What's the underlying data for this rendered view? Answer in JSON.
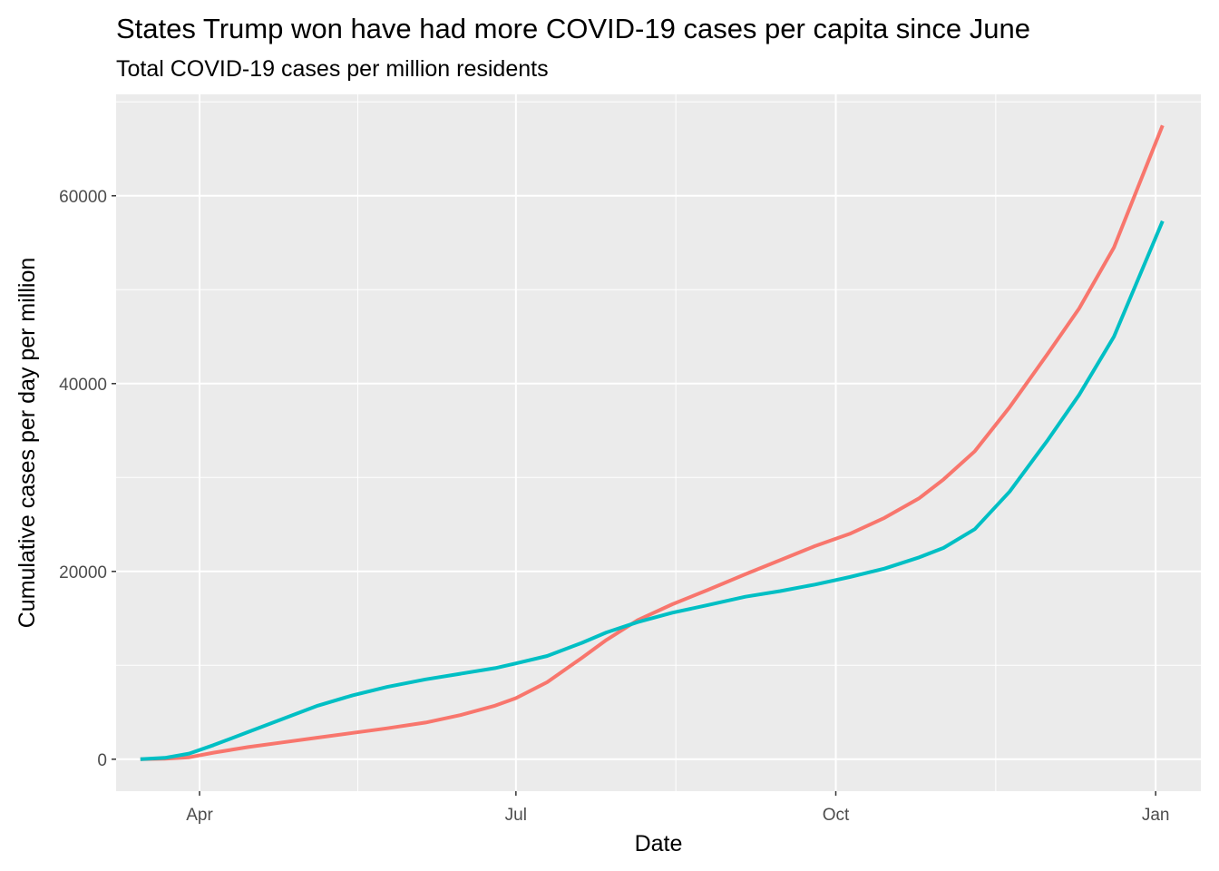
{
  "chart_data": {
    "type": "line",
    "title": "States Trump won have had more COVID-19 cases per capita since June",
    "subtitle": "Total COVID-19 cases per million residents",
    "xlabel": "Date",
    "ylabel": "Cumulative cases per day per million",
    "x_ticks": [
      {
        "date": "2020-04-01",
        "label": "Apr"
      },
      {
        "date": "2020-07-01",
        "label": "Jul"
      },
      {
        "date": "2020-10-01",
        "label": "Oct"
      },
      {
        "date": "2021-01-01",
        "label": "Jan"
      }
    ],
    "x_range": [
      "2020-03-08",
      "2021-01-14"
    ],
    "y_ticks": [
      0,
      20000,
      40000,
      60000
    ],
    "ylim": [
      -3400,
      70800
    ],
    "grid": true,
    "legend": "none",
    "series": [
      {
        "color": "#F8766D",
        "x": [
          "2020-03-15",
          "2020-03-22",
          "2020-03-29",
          "2020-04-05",
          "2020-04-15",
          "2020-04-25",
          "2020-05-05",
          "2020-05-15",
          "2020-05-25",
          "2020-06-05",
          "2020-06-15",
          "2020-06-25",
          "2020-07-01",
          "2020-07-10",
          "2020-07-20",
          "2020-07-27",
          "2020-08-05",
          "2020-08-15",
          "2020-08-25",
          "2020-09-05",
          "2020-09-15",
          "2020-09-25",
          "2020-10-05",
          "2020-10-15",
          "2020-10-25",
          "2020-11-01",
          "2020-11-10",
          "2020-11-20",
          "2020-12-01",
          "2020-12-10",
          "2020-12-20",
          "2021-01-03"
        ],
        "values": [
          0,
          50,
          200,
          700,
          1300,
          1800,
          2300,
          2800,
          3300,
          3900,
          4700,
          5700,
          6500,
          8200,
          10800,
          12700,
          14800,
          16500,
          18000,
          19700,
          21200,
          22700,
          24000,
          25700,
          27800,
          29800,
          32800,
          37500,
          43200,
          48000,
          54500,
          67500
        ]
      },
      {
        "color": "#00BFC4",
        "x": [
          "2020-03-15",
          "2020-03-22",
          "2020-03-29",
          "2020-04-05",
          "2020-04-15",
          "2020-04-25",
          "2020-05-05",
          "2020-05-15",
          "2020-05-25",
          "2020-06-05",
          "2020-06-15",
          "2020-06-25",
          "2020-07-01",
          "2020-07-10",
          "2020-07-20",
          "2020-07-27",
          "2020-08-05",
          "2020-08-15",
          "2020-08-25",
          "2020-09-05",
          "2020-09-15",
          "2020-09-25",
          "2020-10-05",
          "2020-10-15",
          "2020-10-25",
          "2020-11-01",
          "2020-11-10",
          "2020-11-20",
          "2020-12-01",
          "2020-12-10",
          "2020-12-20",
          "2021-01-03"
        ],
        "values": [
          0,
          150,
          600,
          1500,
          2900,
          4300,
          5700,
          6800,
          7700,
          8500,
          9100,
          9700,
          10200,
          11000,
          12400,
          13500,
          14600,
          15600,
          16400,
          17300,
          17900,
          18600,
          19400,
          20300,
          21500,
          22500,
          24500,
          28500,
          34000,
          38800,
          45000,
          57300
        ]
      }
    ]
  }
}
